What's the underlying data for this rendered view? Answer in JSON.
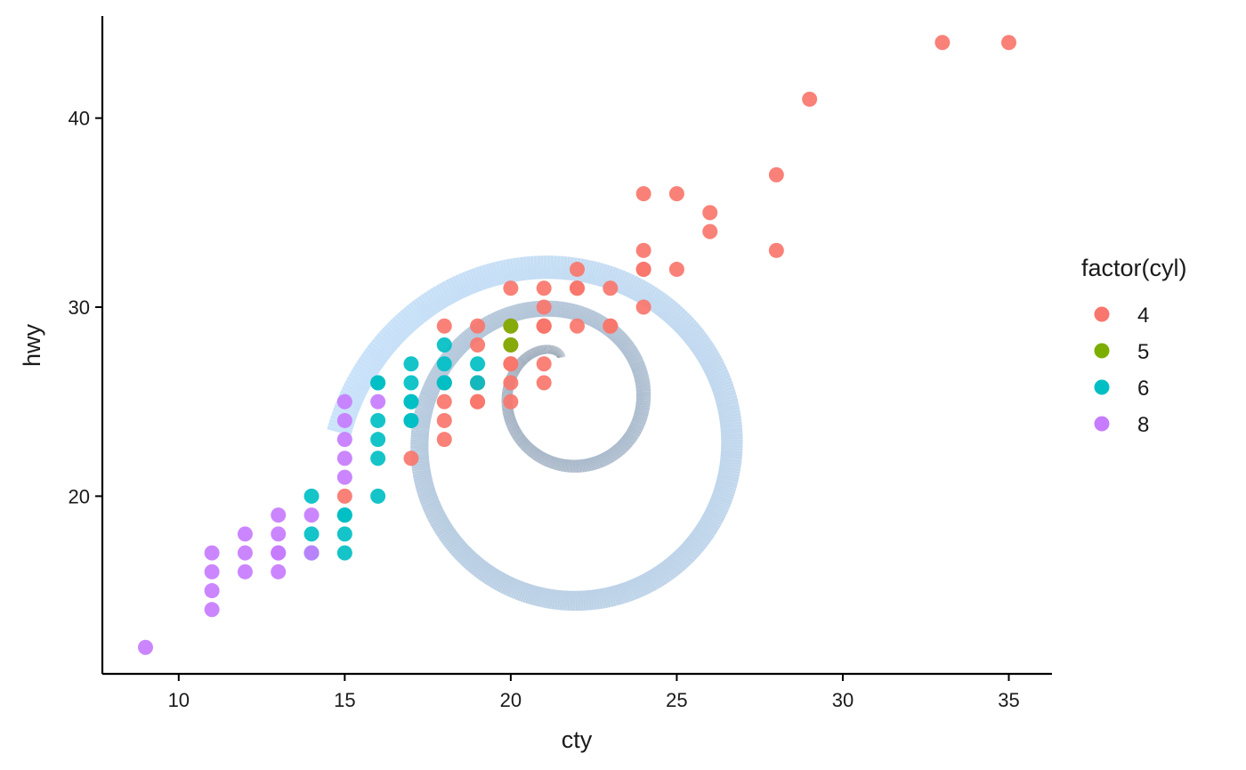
{
  "chart_data": {
    "type": "scatter",
    "xlabel": "cty",
    "ylabel": "hwy",
    "xlim": [
      7.7,
      36.3
    ],
    "ylim": [
      10.6,
      45.4
    ],
    "x_ticks": [
      10,
      15,
      20,
      25,
      30,
      35
    ],
    "y_ticks": [
      20,
      30,
      40
    ],
    "grid": false,
    "legend": {
      "title": "factor(cyl)",
      "placement": "right"
    },
    "series": [
      {
        "name": "4",
        "color": "#F8766D",
        "points": [
          [
            18,
            29
          ],
          [
            21,
            29
          ],
          [
            20,
            31
          ],
          [
            21,
            30
          ],
          [
            18,
            26
          ],
          [
            18,
            26
          ],
          [
            18,
            25
          ],
          [
            24,
            33
          ],
          [
            24,
            32
          ],
          [
            22,
            32
          ],
          [
            19,
            29
          ],
          [
            22,
            31
          ],
          [
            21,
            29
          ],
          [
            20,
            29
          ],
          [
            23,
            29
          ],
          [
            33,
            44
          ],
          [
            35,
            44
          ],
          [
            28,
            37
          ],
          [
            29,
            41
          ],
          [
            19,
            26
          ],
          [
            19,
            28
          ],
          [
            23,
            31
          ],
          [
            24,
            32
          ],
          [
            26,
            34
          ],
          [
            24,
            30
          ],
          [
            25,
            32
          ],
          [
            26,
            35
          ],
          [
            18,
            24
          ],
          [
            18,
            23
          ],
          [
            17,
            22
          ],
          [
            21,
            27
          ],
          [
            20,
            26
          ],
          [
            20,
            27
          ],
          [
            21,
            26
          ],
          [
            19,
            25
          ],
          [
            20,
            25
          ],
          [
            20,
            28
          ],
          [
            22,
            29
          ],
          [
            21,
            31
          ],
          [
            24,
            36
          ],
          [
            25,
            36
          ],
          [
            28,
            33
          ],
          [
            15,
            20
          ],
          [
            23,
            29
          ],
          [
            19,
            26
          ],
          [
            21,
            29
          ],
          [
            21,
            29
          ],
          [
            20,
            27
          ],
          [
            22,
            31
          ],
          [
            19,
            25
          ]
        ]
      },
      {
        "name": "5",
        "color": "#7CAE00",
        "points": [
          [
            20,
            28
          ],
          [
            20,
            29
          ]
        ]
      },
      {
        "name": "6",
        "color": "#00BFC4",
        "points": [
          [
            16,
            26
          ],
          [
            18,
            26
          ],
          [
            18,
            27
          ],
          [
            18,
            28
          ],
          [
            17,
            25
          ],
          [
            17,
            24
          ],
          [
            16,
            24
          ],
          [
            15,
            19
          ],
          [
            15,
            18
          ],
          [
            15,
            17
          ],
          [
            14,
            17
          ],
          [
            14,
            18
          ],
          [
            14,
            20
          ],
          [
            16,
            22
          ],
          [
            16,
            23
          ],
          [
            17,
            26
          ],
          [
            17,
            27
          ],
          [
            19,
            27
          ],
          [
            16,
            20
          ],
          [
            15,
            19
          ],
          [
            17,
            24
          ],
          [
            16,
            26
          ],
          [
            18,
            26
          ],
          [
            19,
            26
          ],
          [
            17,
            25
          ]
        ]
      },
      {
        "name": "8",
        "color": "#C77CFF",
        "points": [
          [
            15,
            25
          ],
          [
            15,
            24
          ],
          [
            15,
            23
          ],
          [
            15,
            22
          ],
          [
            15,
            21
          ],
          [
            16,
            25
          ],
          [
            14,
            19
          ],
          [
            13,
            19
          ],
          [
            13,
            18
          ],
          [
            13,
            17
          ],
          [
            12,
            18
          ],
          [
            12,
            17
          ],
          [
            12,
            16
          ],
          [
            11,
            17
          ],
          [
            11,
            16
          ],
          [
            11,
            15
          ],
          [
            11,
            14
          ],
          [
            9,
            12
          ],
          [
            14,
            17
          ],
          [
            13,
            16
          ],
          [
            13,
            17
          ]
        ]
      }
    ]
  }
}
